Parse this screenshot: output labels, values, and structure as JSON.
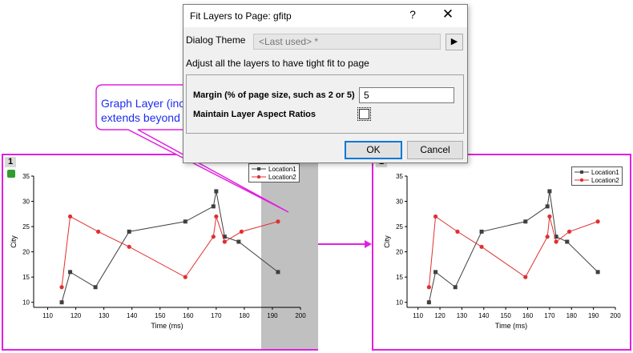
{
  "dialog": {
    "title": "Fit Layers to Page: gfitp",
    "help_label": "?",
    "close_label": "✕",
    "theme_label": "Dialog Theme",
    "theme_value": "<Last used> *",
    "theme_arrow": "▶",
    "description": "Adjust all the layers to have tight fit to page",
    "margin_label": "Margin (% of page size, such as 2 or 5)",
    "margin_value": "5",
    "aspect_label": "Maintain Layer Aspect Ratios",
    "aspect_checked": false,
    "ok_label": "OK",
    "cancel_label": "Cancel"
  },
  "callout": {
    "line1": "Graph Layer (incl. Legend)",
    "line2": "extends beyond Page"
  },
  "graph": {
    "layer_number": "1",
    "colors": {
      "panel_border": "#e020e0",
      "series1": "#404040",
      "series2": "#e03030",
      "overflow": "#c0c0c0",
      "callout_text": "#1e2df0"
    }
  },
  "chart_data": [
    {
      "type": "line",
      "xlabel": "Time (ms)",
      "ylabel": "City",
      "xlim": [
        105,
        200
      ],
      "ylim": [
        9,
        35
      ],
      "xticks": [
        110,
        120,
        130,
        140,
        150,
        160,
        170,
        180,
        190,
        200
      ],
      "yticks": [
        10,
        15,
        20,
        25,
        30,
        35
      ],
      "legend_position": "top-right",
      "series": [
        {
          "name": "Location1",
          "x": [
            115,
            118,
            127,
            139,
            159,
            169,
            170,
            173,
            178,
            192
          ],
          "y": [
            10,
            16,
            13,
            24,
            26,
            29,
            32,
            23,
            22,
            16
          ]
        },
        {
          "name": "Location2",
          "x": [
            115,
            118,
            128,
            139,
            159,
            169,
            170,
            173,
            179,
            192
          ],
          "y": [
            13,
            27,
            24,
            21,
            15,
            23,
            27,
            22,
            24,
            26
          ]
        }
      ]
    },
    {
      "type": "line",
      "xlabel": "Time (ms)",
      "ylabel": "City",
      "xlim": [
        105,
        200
      ],
      "ylim": [
        9,
        35
      ],
      "xticks": [
        110,
        120,
        130,
        140,
        150,
        160,
        170,
        180,
        190,
        200
      ],
      "yticks": [
        10,
        15,
        20,
        25,
        30,
        35
      ],
      "legend_position": "top-right",
      "series": [
        {
          "name": "Location1",
          "x": [
            115,
            118,
            127,
            139,
            159,
            169,
            170,
            173,
            178,
            192
          ],
          "y": [
            10,
            16,
            13,
            24,
            26,
            29,
            32,
            23,
            22,
            16
          ]
        },
        {
          "name": "Location2",
          "x": [
            115,
            118,
            128,
            139,
            159,
            169,
            170,
            173,
            179,
            192
          ],
          "y": [
            13,
            27,
            24,
            21,
            15,
            23,
            27,
            22,
            24,
            26
          ]
        }
      ]
    }
  ]
}
